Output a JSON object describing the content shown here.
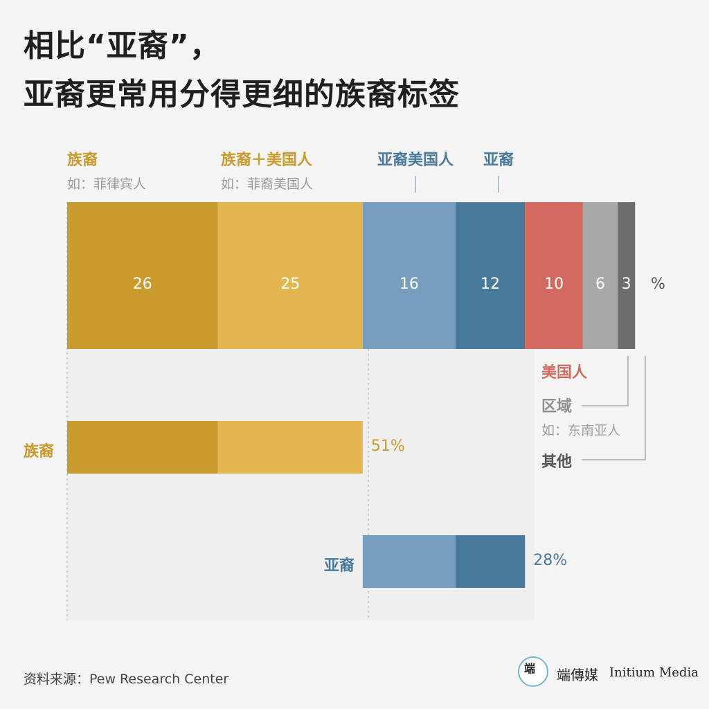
{
  "title": {
    "line1": "相比“亚裔”，",
    "line2": "亚裔更常用分得更细的族裔标签"
  },
  "top_labels": {
    "ethnic": "族裔",
    "ethnic_example": "如：菲律宾人",
    "ethnic_american": "族裔＋美国人",
    "ethnic_american_example": "如：菲裔美国人",
    "asian_american": "亚裔美国人",
    "asian": "亚裔"
  },
  "side_labels": {
    "american": "美国人",
    "region": "区域",
    "region_example": "如：东南亚人",
    "other": "其他"
  },
  "chart_data": {
    "type": "bar",
    "unit": "%",
    "stacked_bar": {
      "segments": [
        {
          "name": "族裔",
          "value": 26,
          "color": "#c99a2e"
        },
        {
          "name": "族裔＋美国人",
          "value": 25,
          "color": "#e3b64f"
        },
        {
          "name": "亚裔美国人",
          "value": 16,
          "color": "#779fbd"
        },
        {
          "name": "亚裔",
          "value": 12,
          "color": "#4a7a9b"
        },
        {
          "name": "美国人",
          "value": 10,
          "color": "#d26a5f"
        },
        {
          "name": "区域",
          "value": 6,
          "color": "#a9a9a9"
        },
        {
          "name": "其他",
          "value": 3,
          "color": "#6d6d6d"
        }
      ]
    },
    "groups": [
      {
        "label": "族裔",
        "total": "51%",
        "parts": [
          26,
          25
        ],
        "label_color": "#c99a2e"
      },
      {
        "label": "亚裔",
        "total": "28%",
        "parts": [
          16,
          12
        ],
        "label_color": "#4a7a9b"
      }
    ]
  },
  "source": "资料来源：Pew Research Center",
  "brand": {
    "logo_text": "端",
    "name_cn": "端傳媒",
    "name_en": "Initium Media"
  }
}
